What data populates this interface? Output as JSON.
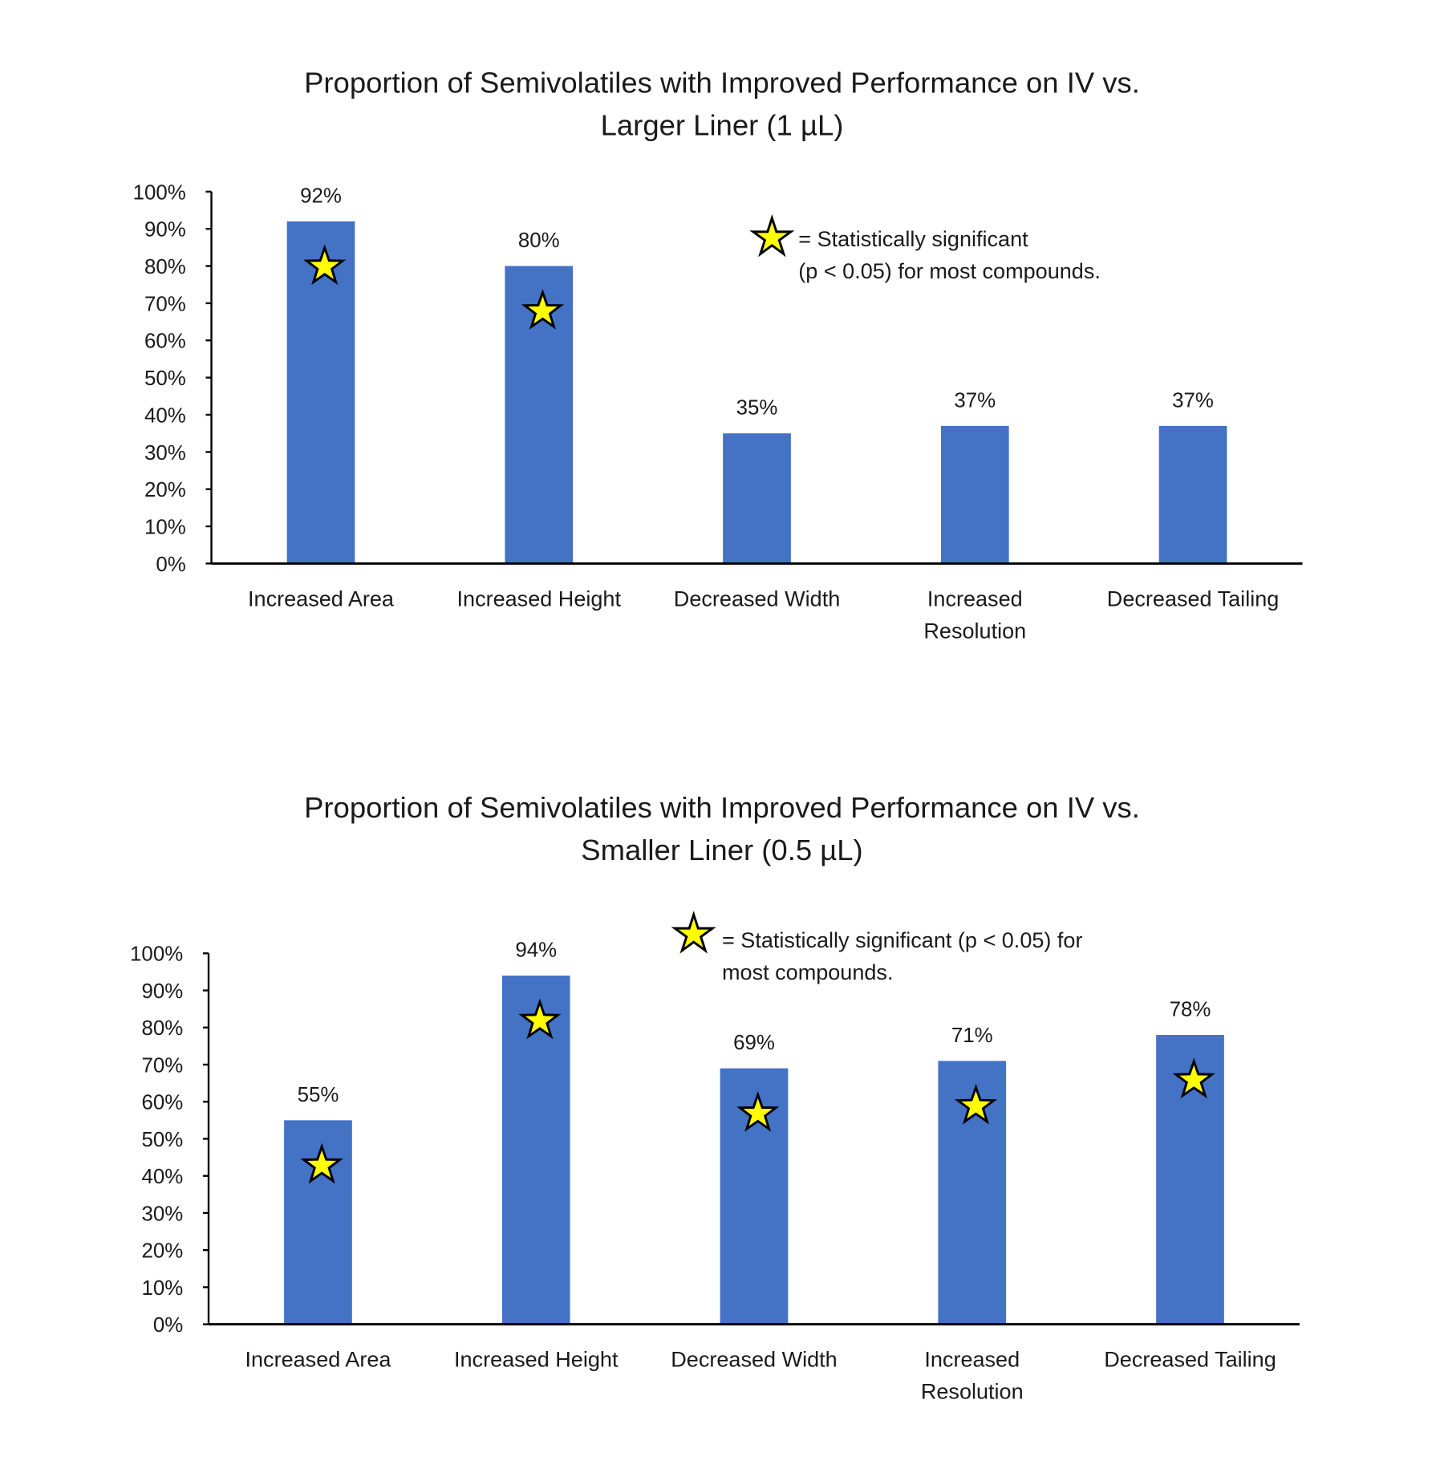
{
  "chart_data": [
    {
      "type": "bar",
      "title": [
        "Proportion of Semivolatiles with Improved Performance on IV vs.",
        "Larger Liner (1 µL)"
      ],
      "categories": [
        [
          "Increased Area"
        ],
        [
          "Increased Height"
        ],
        [
          "Decreased Width"
        ],
        [
          "Increased",
          "Resolution"
        ],
        [
          "Decreased Tailing"
        ]
      ],
      "values": [
        92,
        80,
        35,
        37,
        37
      ],
      "data_labels": [
        "92%",
        "80%",
        "35%",
        "37%",
        "37%"
      ],
      "significant": [
        true,
        true,
        false,
        false,
        false
      ],
      "ylim": [
        0,
        100
      ],
      "yticks": [
        "0%",
        "10%",
        "20%",
        "30%",
        "40%",
        "50%",
        "60%",
        "70%",
        "80%",
        "90%",
        "100%"
      ],
      "legend": [
        "= Statistically significant",
        "(p < 0.05) for most compounds."
      ],
      "bar_color": "#4472C4",
      "star_color": "#FFFF00",
      "grid": false
    },
    {
      "type": "bar",
      "title": [
        "Proportion of Semivolatiles with Improved Performance on IV vs.",
        "Smaller Liner (0.5 µL)"
      ],
      "categories": [
        [
          "Increased Area"
        ],
        [
          "Increased Height"
        ],
        [
          "Decreased Width"
        ],
        [
          "Increased",
          "Resolution"
        ],
        [
          "Decreased Tailing"
        ]
      ],
      "values": [
        55,
        94,
        69,
        71,
        78
      ],
      "data_labels": [
        "55%",
        "94%",
        "69%",
        "71%",
        "78%"
      ],
      "significant": [
        true,
        true,
        true,
        true,
        true
      ],
      "ylim": [
        0,
        100
      ],
      "yticks": [
        "0%",
        "10%",
        "20%",
        "30%",
        "40%",
        "50%",
        "60%",
        "70%",
        "80%",
        "90%",
        "100%"
      ],
      "legend": [
        "= Statistically significant (p < 0.05) for",
        "most compounds."
      ],
      "bar_color": "#4472C4",
      "star_color": "#FFFF00",
      "grid": false
    }
  ]
}
